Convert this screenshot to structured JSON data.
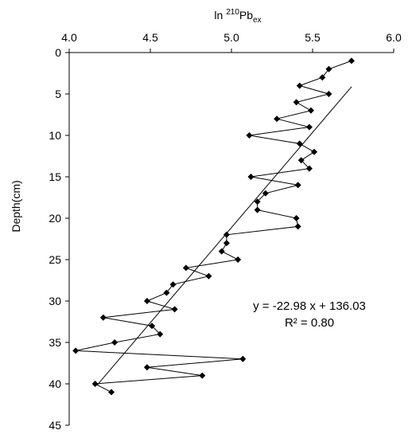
{
  "chart_data": {
    "type": "scatter",
    "title": "",
    "xlabel": {
      "prefix": "ln ",
      "sup": "210",
      "main": "Pb",
      "sub": "ex"
    },
    "ylabel": "Depth(cm)",
    "xlim": [
      4.0,
      6.0
    ],
    "ylim": [
      0,
      45
    ],
    "y_inverted": true,
    "x_axis_position": "top",
    "x_ticks": [
      "4.0",
      "4.5",
      "5.0",
      "5.5",
      "6.0"
    ],
    "x_tick_values": [
      4.0,
      4.5,
      5.0,
      5.5,
      6.0
    ],
    "y_ticks": [
      "0",
      "5",
      "10",
      "15",
      "20",
      "25",
      "30",
      "35",
      "40",
      "45"
    ],
    "y_tick_values": [
      0,
      5,
      10,
      15,
      20,
      25,
      30,
      35,
      40,
      45
    ],
    "grid": false,
    "series": [
      {
        "marker": "diamond",
        "connected": true,
        "color": "#000000",
        "points": [
          [
            5.74,
            1
          ],
          [
            5.6,
            2
          ],
          [
            5.56,
            3
          ],
          [
            5.42,
            4
          ],
          [
            5.6,
            5
          ],
          [
            5.4,
            6
          ],
          [
            5.49,
            7
          ],
          [
            5.28,
            8
          ],
          [
            5.48,
            9
          ],
          [
            5.11,
            10
          ],
          [
            5.42,
            11
          ],
          [
            5.51,
            12
          ],
          [
            5.43,
            13
          ],
          [
            5.48,
            14
          ],
          [
            5.12,
            15
          ],
          [
            5.41,
            16
          ],
          [
            5.21,
            17
          ],
          [
            5.16,
            18
          ],
          [
            5.16,
            19
          ],
          [
            5.4,
            20
          ],
          [
            5.41,
            21
          ],
          [
            4.97,
            22
          ],
          [
            4.97,
            23
          ],
          [
            4.94,
            24
          ],
          [
            5.04,
            25
          ],
          [
            4.72,
            26
          ],
          [
            4.86,
            27
          ],
          [
            4.64,
            28
          ],
          [
            4.6,
            29
          ],
          [
            4.48,
            30
          ],
          [
            4.65,
            31
          ],
          [
            4.21,
            32
          ],
          [
            4.51,
            33
          ],
          [
            4.56,
            34
          ],
          [
            4.28,
            35
          ],
          [
            4.04,
            36
          ],
          [
            5.07,
            37
          ],
          [
            4.48,
            38
          ],
          [
            4.82,
            39
          ],
          [
            4.16,
            40
          ],
          [
            4.26,
            41
          ]
        ]
      }
    ],
    "trendline": {
      "slope": -22.98,
      "intercept": 136.03,
      "x_range": [
        4.17,
        5.74
      ]
    },
    "annotations": {
      "equation": "y = -22.98 x + 136.03",
      "r2": "R² = 0.80"
    }
  }
}
